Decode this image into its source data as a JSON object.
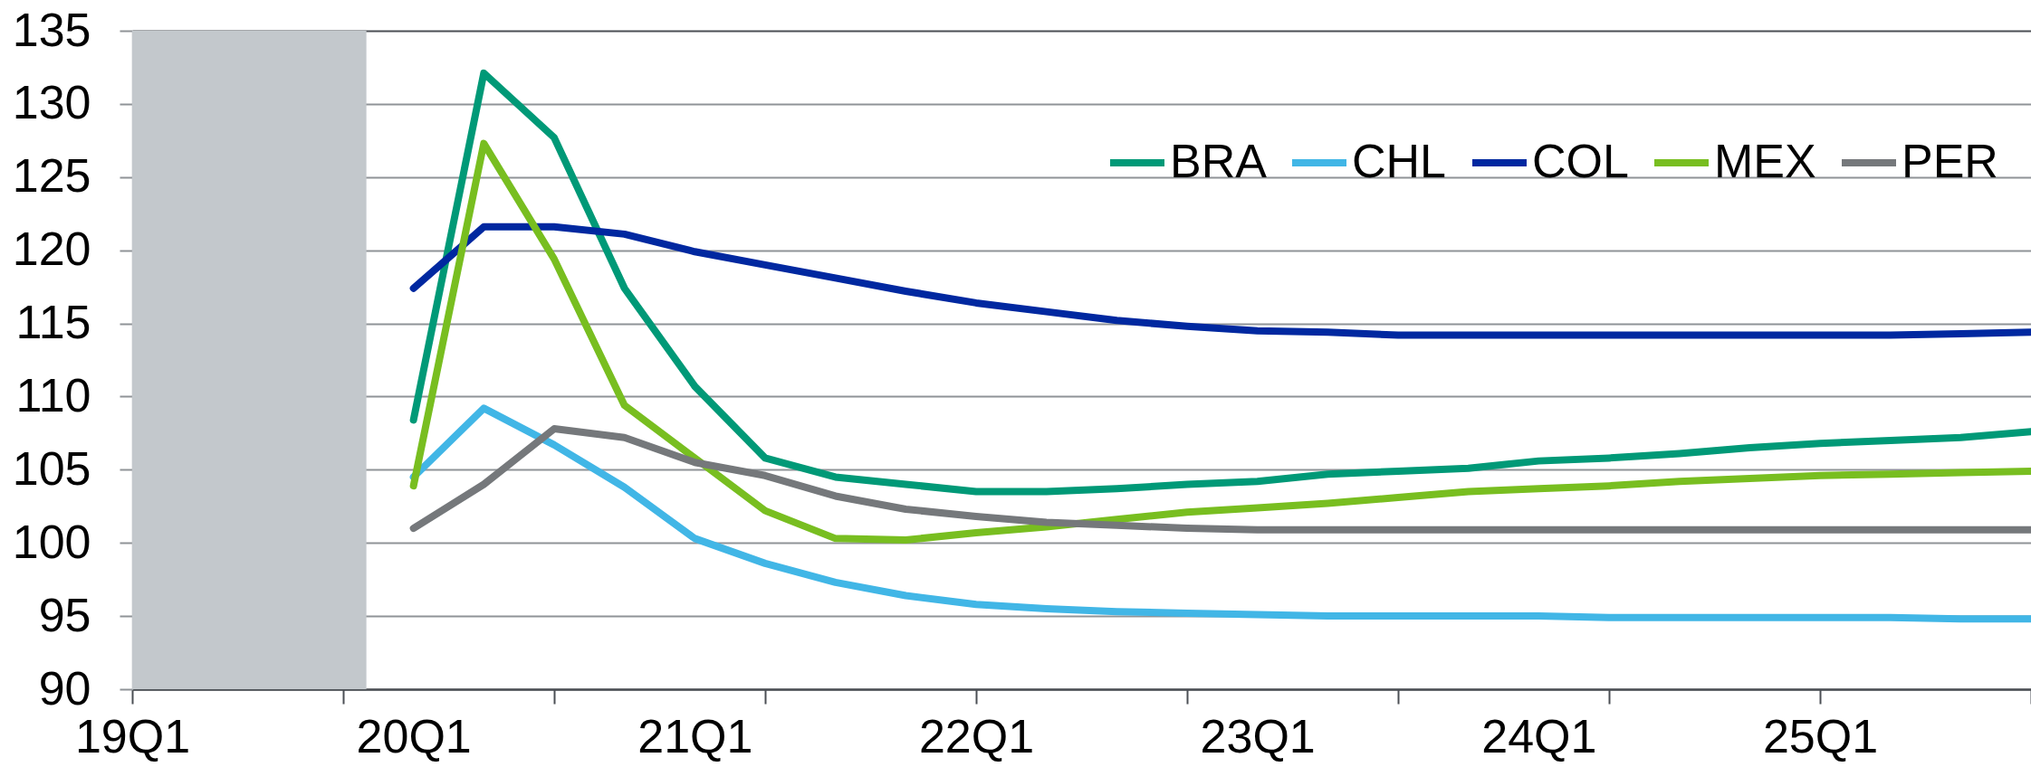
{
  "chart_data": {
    "type": "line",
    "categories": [
      "19Q1",
      null,
      null,
      null,
      "20Q1",
      null,
      null,
      null,
      "21Q1",
      null,
      null,
      null,
      "22Q1",
      null,
      null,
      null,
      "23Q1",
      null,
      null,
      null,
      "24Q1",
      null,
      null,
      null,
      "25Q1",
      null,
      null,
      null
    ],
    "ylim": [
      90,
      135
    ],
    "yticks": [
      90,
      95,
      100,
      105,
      110,
      115,
      120,
      125,
      130,
      135
    ],
    "grid": "y",
    "legend": "top right",
    "line_style": "solid",
    "series": [
      {
        "name": "BRA",
        "color": "#009977",
        "values": [
          null,
          null,
          null,
          null,
          108.4,
          132.1,
          127.7,
          117.4,
          110.7,
          105.8,
          104.5,
          104.0,
          103.5,
          103.5,
          103.7,
          104.0,
          104.2,
          104.7,
          104.9,
          105.1,
          105.6,
          105.8,
          106.1,
          106.5,
          106.8,
          107.0,
          107.2,
          107.6
        ]
      },
      {
        "name": "CHL",
        "color": "#41b6e6",
        "values": [
          null,
          null,
          null,
          null,
          104.5,
          109.2,
          106.7,
          103.8,
          100.3,
          98.6,
          97.3,
          96.4,
          95.8,
          95.5,
          95.3,
          95.2,
          95.1,
          95.0,
          95.0,
          95.0,
          95.0,
          94.9,
          94.9,
          94.9,
          94.9,
          94.9,
          94.8,
          94.8
        ]
      },
      {
        "name": "COL",
        "color": "#0028a0",
        "values": [
          null,
          null,
          null,
          null,
          117.4,
          121.6,
          121.6,
          121.1,
          119.9,
          119.0,
          118.1,
          117.2,
          116.4,
          115.8,
          115.2,
          114.8,
          114.5,
          114.4,
          114.2,
          114.2,
          114.2,
          114.2,
          114.2,
          114.2,
          114.2,
          114.2,
          114.3,
          114.4
        ]
      },
      {
        "name": "MEX",
        "color": "#78be20",
        "values": [
          null,
          null,
          null,
          null,
          103.9,
          127.3,
          119.4,
          109.4,
          105.8,
          102.2,
          100.3,
          100.2,
          100.7,
          101.1,
          101.6,
          102.1,
          102.4,
          102.7,
          103.1,
          103.5,
          103.7,
          103.9,
          104.2,
          104.4,
          104.6,
          104.7,
          104.8,
          104.9
        ]
      },
      {
        "name": "PER",
        "color": "#75787b",
        "values": [
          null,
          null,
          null,
          null,
          101.0,
          104.0,
          107.8,
          107.2,
          105.5,
          104.6,
          103.2,
          102.3,
          101.8,
          101.4,
          101.2,
          101.0,
          100.9,
          100.9,
          100.9,
          100.9,
          100.9,
          100.9,
          100.9,
          100.9,
          100.9,
          100.9,
          100.9,
          100.9
        ]
      }
    ]
  }
}
